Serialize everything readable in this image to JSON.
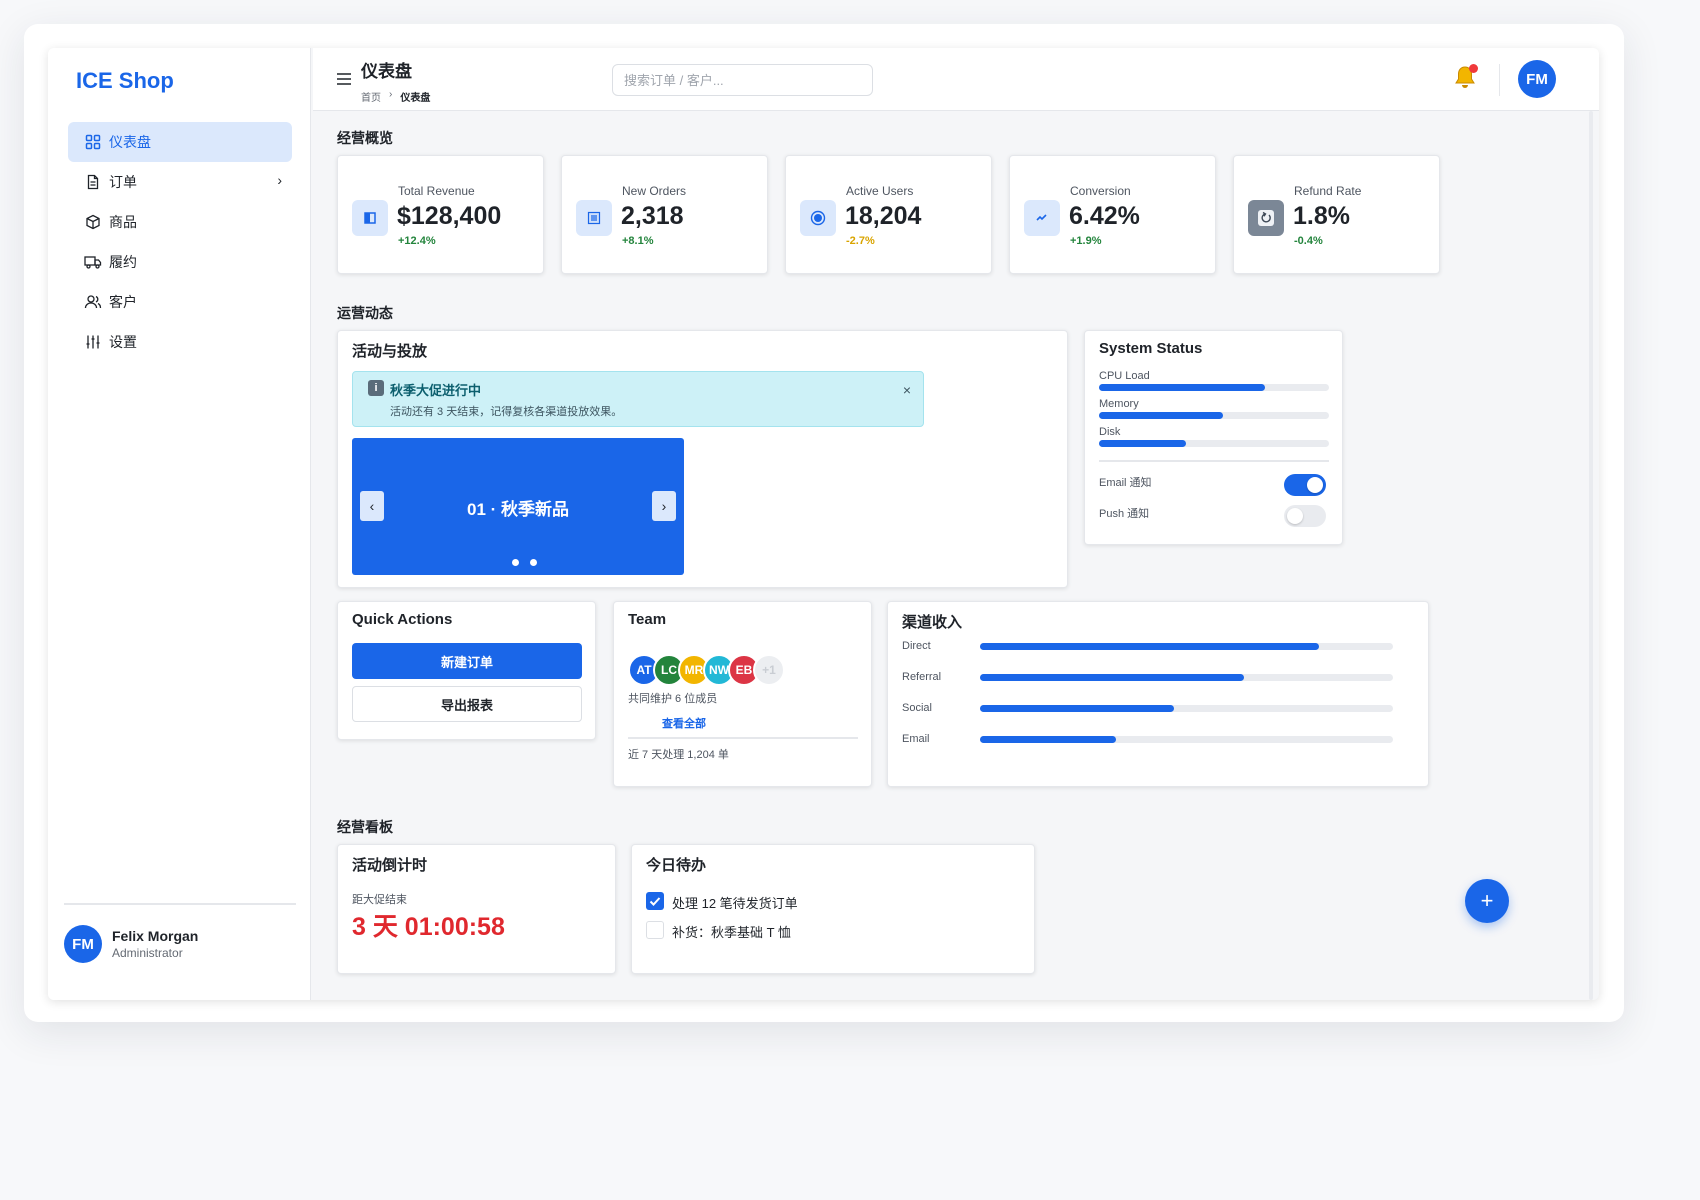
{
  "sidebar": {
    "brand": "ICE Shop",
    "items": [
      {
        "label": "仪表盘",
        "icon": "grid-icon",
        "active": true
      },
      {
        "label": "订单",
        "icon": "document-icon",
        "chevron": "›"
      },
      {
        "label": "商品",
        "icon": "cube-icon"
      },
      {
        "label": "履约",
        "icon": "truck-icon"
      },
      {
        "label": "客户",
        "icon": "users-icon"
      },
      {
        "label": "设置",
        "icon": "sliders-icon"
      }
    ],
    "user": {
      "initials": "FM",
      "name": "Felix Morgan",
      "role": "Administrator"
    }
  },
  "topbar": {
    "title": "仪表盘",
    "breadcrumb": [
      "首页",
      "›",
      "仪表盘"
    ],
    "search_placeholder": "搜索订单 / 客户...",
    "avatar_initials": "FM"
  },
  "overview": {
    "title": "经营概览",
    "stats": [
      {
        "label": "Total Revenue",
        "value": "$128,400",
        "delta": "+12.4%"
      },
      {
        "label": "New Orders",
        "value": "2,318",
        "delta": "+8.1%"
      },
      {
        "label": "Active Users",
        "value": "18,204",
        "delta": "-2.7%"
      },
      {
        "label": "Conversion",
        "value": "6.42%",
        "delta": "+1.9%"
      },
      {
        "label": "Refund Rate",
        "value": "1.8%",
        "delta": "-0.4%"
      }
    ]
  },
  "ops": {
    "title": "运营动态",
    "campaign": {
      "title": "活动与投放",
      "alert_title": "秋季大促进行中",
      "alert_body": "活动还有 3 天结束，记得复核各渠道投放效果。",
      "alert_close": "×",
      "carousel_title": "01 · 秋季新品",
      "prev": "‹",
      "next": "›"
    },
    "system": {
      "title": "System Status",
      "bars": [
        {
          "label": "CPU Load",
          "value": 0.72
        },
        {
          "label": "Memory",
          "value": 0.54
        },
        {
          "label": "Disk",
          "value": 0.38
        }
      ],
      "toggles": [
        {
          "label": "Email 通知",
          "on": true
        },
        {
          "label": "Push 通知",
          "on": false
        }
      ]
    },
    "quick": {
      "title": "Quick Actions",
      "primary": "新建订单",
      "secondary": "导出报表"
    },
    "team": {
      "title": "Team",
      "members": [
        "AT",
        "LC",
        "MR",
        "NW",
        "EB"
      ],
      "member_colors": [
        "#1a66e8",
        "#23843c",
        "#f2b500",
        "#22b8d6",
        "#dc3545"
      ],
      "more": "+1",
      "caption": "共同维护 6 位成员",
      "link": "查看全部",
      "footer": "近 7 天处理 1,204 单"
    },
    "channels": {
      "title": "渠道收入",
      "items": [
        {
          "label": "Direct",
          "value": 0.82
        },
        {
          "label": "Referral",
          "value": 0.64
        },
        {
          "label": "Social",
          "value": 0.47
        },
        {
          "label": "Email",
          "value": 0.33
        }
      ]
    }
  },
  "board": {
    "title": "经营看板",
    "countdown": {
      "title": "活动倒计时",
      "caption": "距大促结束",
      "value": "3 天 01:00:58"
    },
    "todo": {
      "title": "今日待办",
      "items": [
        {
          "label": "处理 12 笔待发货订单",
          "checked": true
        },
        {
          "label": "补货：秋季基础 T 恤",
          "checked": false
        }
      ]
    }
  },
  "fab": "+",
  "colors": {
    "accent": "#1a66e8",
    "positive": "#23843c",
    "warning": "#d9a400",
    "danger": "#e0282e"
  }
}
